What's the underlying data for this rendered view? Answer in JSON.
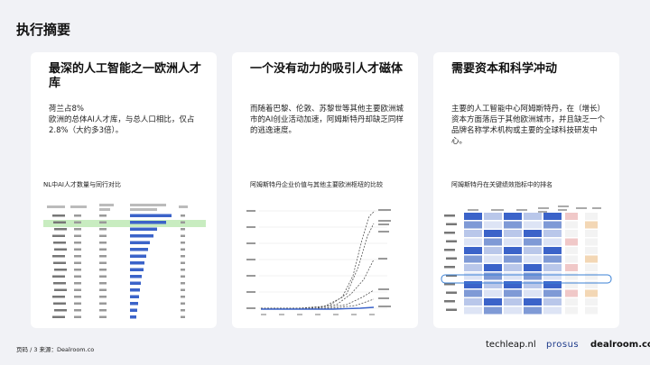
{
  "page_title": "执行摘要",
  "cards": [
    {
      "title": "最深的人工智能之一欧洲人才库",
      "body": "荷兰占8%\n欧洲的总体AI人才库，与总人口相比，仅占2.8%（大约多3倍）。",
      "figure_title": "NL中AI人才数量与同行对比"
    },
    {
      "title": "一个没有动力的吸引人才磁体",
      "body": "而随着巴黎、伦敦、苏黎世等其他主要欧洲城市的AI创业活动加速，阿姆斯特丹却缺乏同样的逃逸速度。",
      "figure_title": "阿姆斯特丹企业价值与其他主要欧洲枢纽的比较"
    },
    {
      "title": "需要资本和科学冲动",
      "body": "主要的人工智能中心阿姆斯特丹，在（增长）资本方面落后于其他欧洲城市，并且缺乏一个品牌名称学术机构或主要的全球科技研发中心。",
      "figure_title": "阿姆斯特丹在关键绩效指标中的排名"
    }
  ],
  "footer": {
    "source": "页码 / 3 来源：Dealroom.co",
    "logo_techleap": "techleap.nl",
    "logo_prosus": "prosus",
    "logo_dealroom": "dealroom.co"
  },
  "colors": {
    "background": "#f1f2f6",
    "card": "#ffffff",
    "bar_blue": "#3b63c9",
    "highlight_green": "#c8ecc0",
    "highlight_outline": "#3b82d6"
  }
}
